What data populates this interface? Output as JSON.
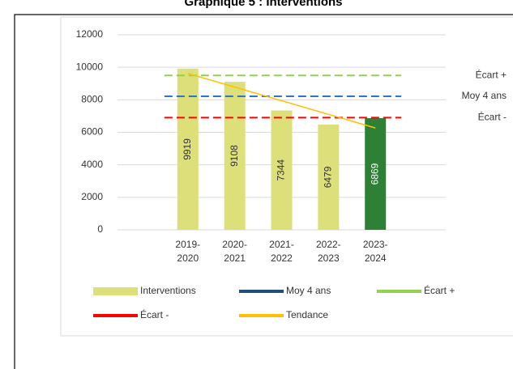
{
  "chart_data": {
    "type": "bar",
    "title": "Graphique 5 : Interventions",
    "categories": [
      null,
      "2019-\n2020",
      "2020-\n2021",
      "2021-\n2022",
      "2022-\n2023",
      "2023-\n2024",
      null
    ],
    "series": [
      {
        "name": "Interventions",
        "kind": "bar",
        "colors": [
          "#dde07a",
          "#dde07a",
          "#dde07a",
          "#dde07a",
          "#dde07a",
          "#2e8036",
          "#dde07a"
        ],
        "label_colors": [
          "#333333",
          "#333333",
          "#333333",
          "#333333",
          "#333333",
          "#ffffff",
          "#333333"
        ],
        "values": [
          null,
          9919,
          9108,
          7344,
          6479,
          6869,
          null
        ]
      },
      {
        "name": "Moy 4 ans",
        "kind": "hline",
        "color": "#2e75c8",
        "legend_color": "#1f4e79",
        "value": 8213
      },
      {
        "name": "Écart +",
        "kind": "hline",
        "color": "#92d050",
        "legend_color": "#92d050",
        "value": 9500
      },
      {
        "name": "Écart -",
        "kind": "hline",
        "color": "#ff0000",
        "legend_color": "#ff0000",
        "value": 6900
      },
      {
        "name": "Tendance",
        "kind": "line",
        "color": "#ffc000",
        "legend_color": "#ffc000",
        "values": [
          null,
          9620,
          8782,
          7944,
          7106,
          6268,
          null
        ]
      }
    ],
    "ylim": [
      0,
      12000
    ],
    "yticks": [
      0,
      2000,
      4000,
      6000,
      8000,
      10000,
      12000
    ],
    "grid": true,
    "legend": "bottom"
  }
}
